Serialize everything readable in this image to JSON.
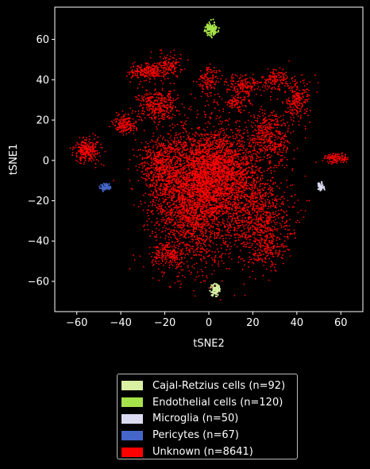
{
  "chart_data": {
    "type": "scatter",
    "xlabel": "tSNE2",
    "ylabel": "tSNE1",
    "xlim": [
      -70,
      70
    ],
    "ylim": [
      -75,
      76
    ],
    "xticks": [
      -60,
      -40,
      -20,
      0,
      20,
      40,
      60
    ],
    "yticks": [
      -60,
      -40,
      -20,
      0,
      20,
      40,
      60
    ],
    "xtick_labels": [
      "−60",
      "−40",
      "−20",
      "0",
      "20",
      "40",
      "60"
    ],
    "ytick_labels": [
      "−60",
      "−40",
      "−20",
      "0",
      "20",
      "40",
      "60"
    ],
    "background": "#000000",
    "axes_color": "#ffffff",
    "grid": false,
    "legend_position": "below",
    "series": [
      {
        "name": "Cajal-Retzius cells (n=92)",
        "color": "#d9f0a3",
        "count": 92,
        "clusters": [
          {
            "x": 3,
            "y": -64,
            "sx": 1.2,
            "sy": 1.5
          }
        ]
      },
      {
        "name": "Endothelial cells (n=120)",
        "color": "#a6e34a",
        "count": 120,
        "clusters": [
          {
            "x": 1,
            "y": 65,
            "sx": 1.3,
            "sy": 1.5
          }
        ]
      },
      {
        "name": "Microglia (n=50)",
        "color": "#dadaf0",
        "count": 50,
        "clusters": [
          {
            "x": 51,
            "y": -13,
            "sx": 0.7,
            "sy": 1.0
          }
        ]
      },
      {
        "name": "Pericytes (n=67)",
        "color": "#4466c8",
        "count": 67,
        "clusters": [
          {
            "x": -47,
            "y": -13.5,
            "sx": 1.2,
            "sy": 0.9
          }
        ]
      },
      {
        "name": "Unknown (n=8641)",
        "color": "#ff0000",
        "count": 8641,
        "clusters": [
          {
            "x": -7,
            "y": -18,
            "sx": 9,
            "sy": 17,
            "w": 0.3
          },
          {
            "x": 6,
            "y": -6,
            "sx": 9,
            "sy": 10,
            "w": 0.22
          },
          {
            "x": 22,
            "y": -28,
            "sx": 8,
            "sy": 11,
            "w": 0.1
          },
          {
            "x": -22,
            "y": -3,
            "sx": 5,
            "sy": 7,
            "w": 0.06
          },
          {
            "x": 28,
            "y": 12,
            "sx": 5,
            "sy": 7,
            "w": 0.05
          },
          {
            "x": -23,
            "y": 27,
            "sx": 4.5,
            "sy": 4,
            "w": 0.04
          },
          {
            "x": -28,
            "y": 44,
            "sx": 4,
            "sy": 2,
            "w": 0.025
          },
          {
            "x": -18,
            "y": 48,
            "sx": 3,
            "sy": 3,
            "w": 0.015
          },
          {
            "x": -38,
            "y": 18,
            "sx": 2.5,
            "sy": 2.5,
            "w": 0.02
          },
          {
            "x": -55,
            "y": 5,
            "sx": 3,
            "sy": 3,
            "w": 0.03
          },
          {
            "x": 58,
            "y": 1,
            "sx": 3,
            "sy": 1.2,
            "w": 0.015
          },
          {
            "x": 0,
            "y": 39,
            "sx": 2.5,
            "sy": 4,
            "w": 0.015
          },
          {
            "x": 16,
            "y": 37,
            "sx": 4,
            "sy": 3,
            "w": 0.02
          },
          {
            "x": 30,
            "y": 40,
            "sx": 3,
            "sy": 2.5,
            "w": 0.015
          },
          {
            "x": 40,
            "y": 30,
            "sx": 3,
            "sy": 5,
            "w": 0.025
          },
          {
            "x": 12,
            "y": 28,
            "sx": 3,
            "sy": 2,
            "w": 0.01
          },
          {
            "x": -18,
            "y": -47,
            "sx": 4,
            "sy": 3,
            "w": 0.02
          },
          {
            "x": 26,
            "y": -45,
            "sx": 4,
            "sy": 4,
            "w": 0.015
          }
        ]
      }
    ]
  }
}
